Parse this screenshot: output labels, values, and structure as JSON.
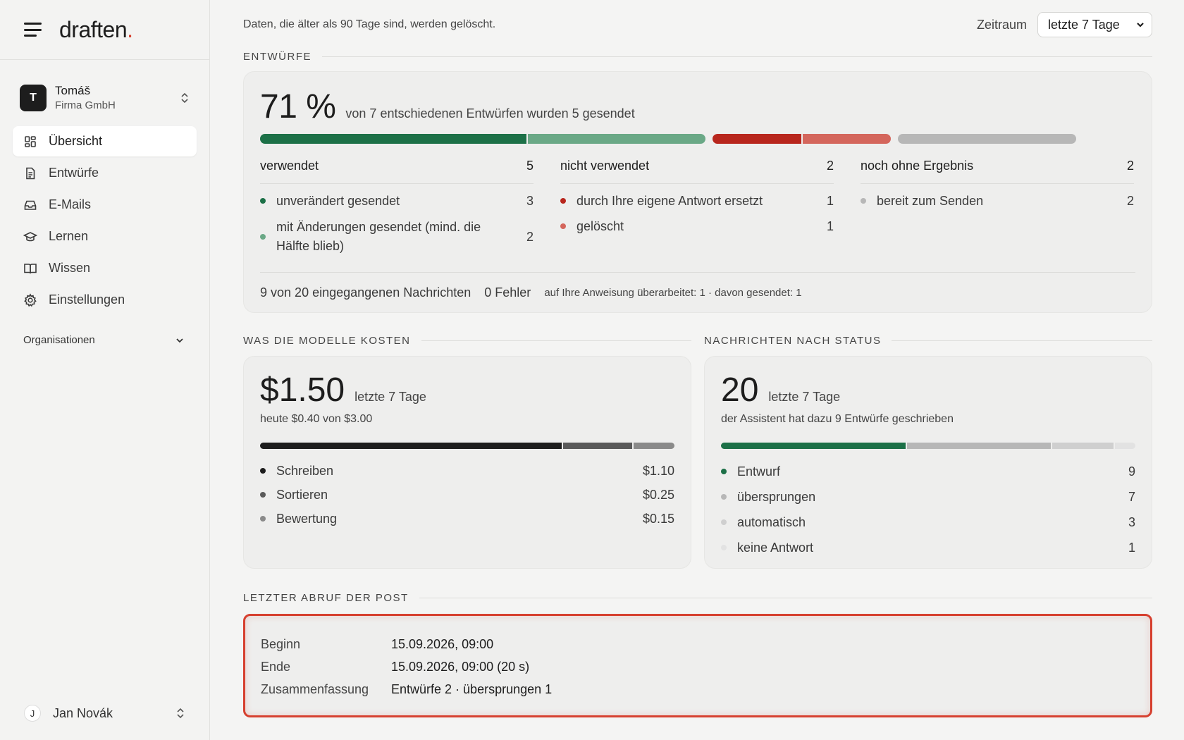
{
  "brand": {
    "name": "draften",
    "dot": "."
  },
  "account": {
    "initial": "T",
    "name": "Tomáš",
    "org": "Firma GmbH"
  },
  "nav": {
    "items": [
      {
        "label": "Übersicht",
        "icon": "grid-icon"
      },
      {
        "label": "Entwürfe",
        "icon": "document-icon"
      },
      {
        "label": "E-Mails",
        "icon": "inbox-icon"
      },
      {
        "label": "Lernen",
        "icon": "graduation-cap-icon"
      },
      {
        "label": "Wissen",
        "icon": "book-icon"
      },
      {
        "label": "Einstellungen",
        "icon": "gear-icon"
      }
    ],
    "organisations_label": "Organisationen"
  },
  "user": {
    "initial": "J",
    "name": "Jan Novák"
  },
  "topbar": {
    "retention_note": "Daten, die älter als 90 Tage sind, werden gelöscht.",
    "range_label": "Zeitraum",
    "range_value": "letzte 7 Tage"
  },
  "drafts": {
    "section_title": "ENTWÜRFE",
    "percent": "71 %",
    "summary": "von 7 entschiedenen Entwürfen wurden 5 gesendet",
    "bar": [
      {
        "group": "used",
        "value": 3,
        "color": "#1c7047"
      },
      {
        "group": "used",
        "value": 2,
        "color": "#6aa886"
      },
      {
        "group": "unused",
        "value": 1,
        "color": "#b8261d"
      },
      {
        "group": "unused",
        "value": 1,
        "color": "#d4665c"
      },
      {
        "group": "pending",
        "value": 2,
        "color": "#b7b7b7"
      }
    ],
    "used": {
      "label": "verwendet",
      "count": "5",
      "items": [
        {
          "label": "unverändert gesendet",
          "count": "3",
          "color": "#1c7047"
        },
        {
          "label": "mit Änderungen gesendet (mind. die Hälfte blieb)",
          "count": "2",
          "color": "#6aa886"
        }
      ]
    },
    "unused": {
      "label": "nicht verwendet",
      "count": "2",
      "items": [
        {
          "label": "durch Ihre eigene Antwort ersetzt",
          "count": "1",
          "color": "#b8261d"
        },
        {
          "label": "gelöscht",
          "count": "1",
          "color": "#d4665c"
        }
      ]
    },
    "pending": {
      "label": "noch ohne Ergebnis",
      "count": "2",
      "items": [
        {
          "label": "bereit zum Senden",
          "count": "2",
          "color": "#b7b7b7"
        }
      ]
    },
    "footer": {
      "incoming_count": "9",
      "incoming_text": "von 20 eingegangenen Nachrichten",
      "errors": "0 Fehler",
      "revised": "auf Ihre Anweisung überarbeitet: 1 · davon gesendet: 1"
    }
  },
  "costs": {
    "section_title": "WAS DIE MODELLE KOSTEN",
    "total": "$1.50",
    "period": "letzte 7 Tage",
    "today": "heute $0.40 von $3.00",
    "items": [
      {
        "label": "Schreiben",
        "amount": "$1.10",
        "value": 1.1,
        "color": "#1d1d1d"
      },
      {
        "label": "Sortieren",
        "amount": "$0.25",
        "value": 0.25,
        "color": "#5a5a5a"
      },
      {
        "label": "Bewertung",
        "amount": "$0.15",
        "value": 0.15,
        "color": "#8a8a8a"
      }
    ]
  },
  "status": {
    "section_title": "NACHRICHTEN NACH STATUS",
    "total": "20",
    "period": "letzte 7 Tage",
    "note": "der Assistent hat dazu 9 Entwürfe geschrieben",
    "items": [
      {
        "label": "Entwurf",
        "count": "9",
        "value": 9,
        "color": "#1c7047"
      },
      {
        "label": "übersprungen",
        "count": "7",
        "value": 7,
        "color": "#b7b7b7"
      },
      {
        "label": "automatisch",
        "count": "3",
        "value": 3,
        "color": "#cfcfcf"
      },
      {
        "label": "keine Antwort",
        "count": "1",
        "value": 1,
        "color": "#e2e2e2"
      }
    ]
  },
  "last_fetch": {
    "section_title": "LETZTER ABRUF DER POST",
    "rows": [
      {
        "key": "Beginn",
        "value": "15.09.2026, 09:00"
      },
      {
        "key": "Ende",
        "value": "15.09.2026, 09:00 (20 s)"
      },
      {
        "key": "Zusammenfassung",
        "value": "Entwürfe 2 · übersprungen 1"
      }
    ]
  }
}
